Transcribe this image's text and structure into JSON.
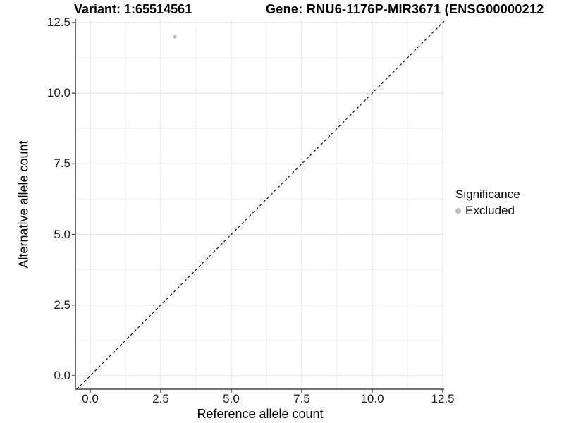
{
  "chart_data": {
    "type": "scatter",
    "title_parts": {
      "variant": "Variant: 1:65514561",
      "gene": "Gene: RNU6-1176P-MIR3671 (ENSG00000212"
    },
    "xlabel": "Reference allele count",
    "ylabel": "Alternative allele count",
    "xlim": [
      -0.525,
      12.55
    ],
    "ylim": [
      -0.475,
      12.625
    ],
    "x_ticks": [
      0,
      2.5,
      5,
      7.5,
      10,
      12.5
    ],
    "x_tick_labels": [
      "0.0",
      "2.5",
      "5.0",
      "7.5",
      "10.0",
      "12.5"
    ],
    "y_ticks": [
      0,
      2.5,
      5,
      7.5,
      10,
      12.5
    ],
    "y_tick_labels": [
      "0.0",
      "2.5",
      "5.0",
      "7.5",
      "10.0",
      "12.5"
    ],
    "grid": "major+minor",
    "points": [
      {
        "x": 3,
        "y": 12,
        "series": "Excluded"
      }
    ],
    "reference_line": {
      "slope": 1,
      "intercept": 0,
      "style": "dashed",
      "color": "#000000"
    },
    "legend": {
      "title": "Significance",
      "position": "right",
      "items": [
        {
          "label": "Excluded",
          "color": "#bebebe"
        }
      ]
    },
    "colors": {
      "point": "#bfbfbf",
      "major_grid": "#e4e4e4",
      "minor_grid": "#f1f1f1",
      "axis_line": "#474747",
      "tick_mark": "#333333",
      "background": "#ffffff"
    }
  }
}
